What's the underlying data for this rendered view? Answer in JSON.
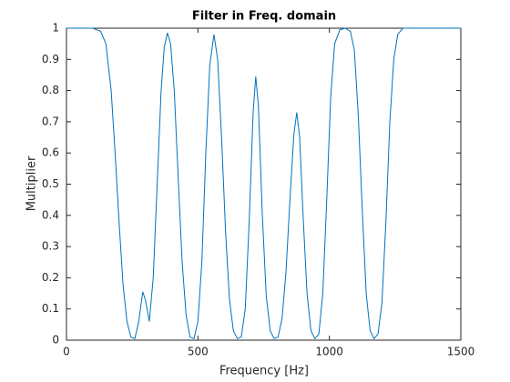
{
  "chart_data": {
    "type": "line",
    "title": "Filter in Freq. domain",
    "xlabel": "Frequency [Hz]",
    "ylabel": "Multiplier",
    "x": [
      0,
      100,
      130,
      150,
      170,
      185,
      200,
      215,
      230,
      245,
      260,
      275,
      290,
      300,
      315,
      330,
      345,
      360,
      372,
      384,
      396,
      410,
      425,
      440,
      455,
      470,
      485,
      500,
      515,
      530,
      545,
      561,
      575,
      590,
      605,
      620,
      635,
      650,
      665,
      680,
      695,
      710,
      720,
      730,
      745,
      760,
      775,
      790,
      805,
      820,
      835,
      850,
      865,
      876,
      887,
      900,
      915,
      930,
      945,
      960,
      975,
      990,
      1005,
      1020,
      1040,
      1060,
      1080,
      1095,
      1110,
      1125,
      1140,
      1155,
      1170,
      1185,
      1200,
      1215,
      1230,
      1245,
      1260,
      1280,
      1500
    ],
    "series": [
      {
        "name": "Multiplier",
        "color": "#0072bd",
        "values": [
          1,
          1,
          0.99,
          0.95,
          0.8,
          0.6,
          0.38,
          0.18,
          0.06,
          0.01,
          0.005,
          0.06,
          0.155,
          0.13,
          0.06,
          0.2,
          0.5,
          0.8,
          0.94,
          0.985,
          0.95,
          0.8,
          0.52,
          0.25,
          0.08,
          0.01,
          0.005,
          0.06,
          0.25,
          0.6,
          0.88,
          0.98,
          0.9,
          0.65,
          0.35,
          0.13,
          0.03,
          0.005,
          0.01,
          0.1,
          0.38,
          0.73,
          0.845,
          0.75,
          0.4,
          0.14,
          0.03,
          0.005,
          0.01,
          0.07,
          0.22,
          0.45,
          0.66,
          0.73,
          0.65,
          0.4,
          0.15,
          0.03,
          0.005,
          0.02,
          0.15,
          0.45,
          0.78,
          0.95,
          0.995,
          1,
          0.99,
          0.93,
          0.72,
          0.42,
          0.15,
          0.03,
          0.005,
          0.02,
          0.12,
          0.38,
          0.7,
          0.9,
          0.98,
          1,
          1
        ]
      }
    ],
    "xlim": [
      0,
      1500
    ],
    "xticks": [
      0,
      500,
      1000,
      1500
    ],
    "ylim": [
      0,
      1
    ],
    "yticks": [
      0,
      0.1,
      0.2,
      0.3,
      0.4,
      0.5,
      0.6,
      0.7,
      0.8,
      0.9,
      1
    ],
    "grid": false
  }
}
